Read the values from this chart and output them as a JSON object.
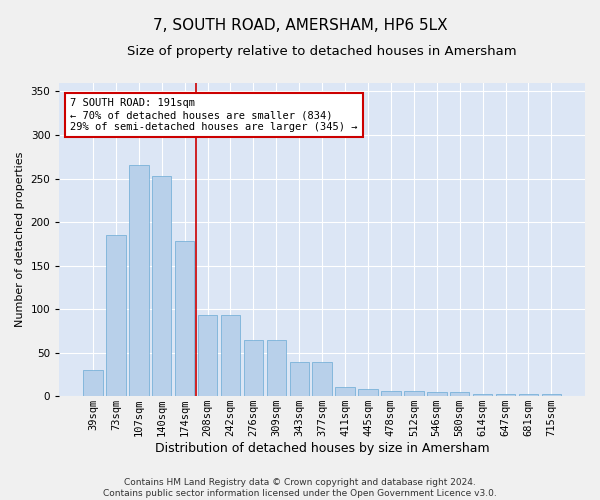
{
  "title": "7, SOUTH ROAD, AMERSHAM, HP6 5LX",
  "subtitle": "Size of property relative to detached houses in Amersham",
  "xlabel": "Distribution of detached houses by size in Amersham",
  "ylabel": "Number of detached properties",
  "categories": [
    "39sqm",
    "73sqm",
    "107sqm",
    "140sqm",
    "174sqm",
    "208sqm",
    "242sqm",
    "276sqm",
    "309sqm",
    "343sqm",
    "377sqm",
    "411sqm",
    "445sqm",
    "478sqm",
    "512sqm",
    "546sqm",
    "580sqm",
    "614sqm",
    "647sqm",
    "681sqm",
    "715sqm"
  ],
  "values": [
    30,
    185,
    265,
    253,
    178,
    93,
    93,
    64,
    64,
    39,
    39,
    11,
    8,
    6,
    6,
    5,
    5,
    3,
    2,
    2,
    2
  ],
  "bar_color": "#b8d0ea",
  "bar_edge_color": "#6aaad4",
  "background_color": "#dce6f5",
  "grid_color": "#ffffff",
  "vline_x_index": 4.5,
  "vline_color": "#cc0000",
  "annotation_line1": "7 SOUTH ROAD: 191sqm",
  "annotation_line2": "← 70% of detached houses are smaller (834)",
  "annotation_line3": "29% of semi-detached houses are larger (345) →",
  "annotation_box_color": "#ffffff",
  "annotation_box_edge_color": "#cc0000",
  "ylim": [
    0,
    360
  ],
  "yticks": [
    0,
    50,
    100,
    150,
    200,
    250,
    300,
    350
  ],
  "footnote_line1": "Contains HM Land Registry data © Crown copyright and database right 2024.",
  "footnote_line2": "Contains public sector information licensed under the Open Government Licence v3.0.",
  "title_fontsize": 11,
  "subtitle_fontsize": 9.5,
  "xlabel_fontsize": 9,
  "ylabel_fontsize": 8,
  "tick_fontsize": 7.5,
  "annotation_fontsize": 7.5,
  "footnote_fontsize": 6.5,
  "fig_bg": "#f0f0f0"
}
